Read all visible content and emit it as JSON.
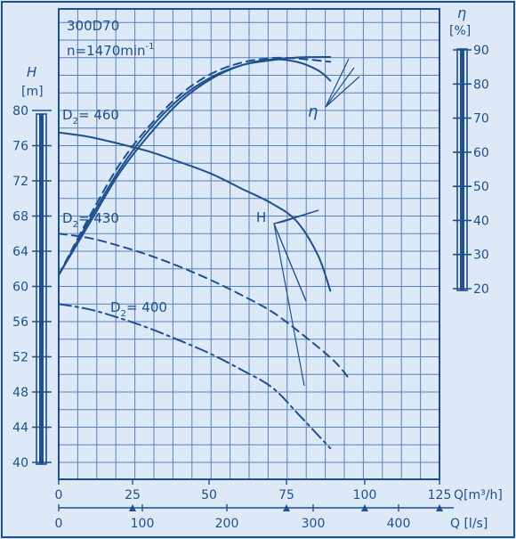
{
  "chart_data": {
    "type": "line",
    "title": "300D70",
    "subtitle_prefix": "n=1470min",
    "subtitle_sup": "-1",
    "left_axis": {
      "symbol": "H",
      "unit": "[m]",
      "ticks": [
        "40",
        "44",
        "48",
        "52",
        "56",
        "60",
        "64",
        "68",
        "72",
        "76",
        "80"
      ],
      "range": [
        40,
        80
      ]
    },
    "right_axis": {
      "symbol": "η",
      "unit": "[%]",
      "ticks": [
        "20",
        "30",
        "40",
        "50",
        "60",
        "70",
        "80",
        "90"
      ],
      "range": [
        20,
        90
      ]
    },
    "x_axis_top": {
      "ticks": [
        "0",
        "25",
        "50",
        "75",
        "100",
        "125"
      ],
      "unit_label": "Q[m³/h]",
      "range": [
        0,
        1000
      ]
    },
    "x_axis_bottom": {
      "ticks": [
        "0",
        "100",
        "200",
        "300",
        "400"
      ],
      "unit_label": "Q [l/s]",
      "range": [
        0,
        1000
      ]
    },
    "series": [
      {
        "name": "D2=460",
        "label_main": "D",
        "label_sub": "2",
        "label_rest": "= 460",
        "style": "solid",
        "kind": "H",
        "points": [
          [
            0,
            77.5
          ],
          [
            100,
            77
          ],
          [
            200,
            76.2
          ],
          [
            300,
            75.3
          ],
          [
            400,
            74.1
          ],
          [
            500,
            72.8
          ],
          [
            600,
            71.1
          ],
          [
            700,
            69.4
          ],
          [
            780,
            67.4
          ],
          [
            850,
            63.5
          ],
          [
            890,
            59.5
          ]
        ]
      },
      {
        "name": "D2=430",
        "label_main": "D",
        "label_sub": "2",
        "label_rest": "= 430",
        "style": "dashed",
        "kind": "H",
        "points": [
          [
            0,
            66
          ],
          [
            100,
            65.5
          ],
          [
            200,
            64.6
          ],
          [
            300,
            63.5
          ],
          [
            400,
            62.2
          ],
          [
            500,
            60.7
          ],
          [
            600,
            59
          ],
          [
            700,
            57.1
          ],
          [
            800,
            54.5
          ],
          [
            900,
            51.6
          ],
          [
            950,
            49.6
          ]
        ]
      },
      {
        "name": "D2=400",
        "label_main": "D",
        "label_sub": "2",
        "label_rest": "= 400",
        "style": "dashdot",
        "kind": "H",
        "points": [
          [
            0,
            58
          ],
          [
            100,
            57.4
          ],
          [
            200,
            56.4
          ],
          [
            300,
            55.2
          ],
          [
            400,
            53.8
          ],
          [
            500,
            52.3
          ],
          [
            600,
            50.5
          ],
          [
            700,
            48.5
          ],
          [
            790,
            45.3
          ],
          [
            890,
            41.6
          ]
        ]
      },
      {
        "name": "η D2=460",
        "style": "solid",
        "kind": "eta",
        "points": [
          [
            0,
            24
          ],
          [
            100,
            39
          ],
          [
            200,
            54
          ],
          [
            300,
            65.5
          ],
          [
            400,
            75
          ],
          [
            500,
            81.5
          ],
          [
            600,
            85.5
          ],
          [
            700,
            87.2
          ],
          [
            780,
            86.5
          ],
          [
            850,
            84
          ],
          [
            890,
            81
          ]
        ]
      },
      {
        "name": "η D2=430",
        "style": "dashed",
        "kind": "eta",
        "points": [
          [
            0,
            24
          ],
          [
            100,
            41
          ],
          [
            200,
            56.5
          ],
          [
            300,
            68
          ],
          [
            400,
            77
          ],
          [
            500,
            83
          ],
          [
            600,
            86.3
          ],
          [
            700,
            87.6
          ],
          [
            780,
            87.5
          ],
          [
            890,
            86.5
          ]
        ]
      },
      {
        "name": "η D2=400",
        "style": "solid",
        "kind": "eta",
        "points": [
          [
            0,
            24
          ],
          [
            100,
            40
          ],
          [
            200,
            55
          ],
          [
            300,
            67
          ],
          [
            400,
            76
          ],
          [
            500,
            82
          ],
          [
            600,
            85.5
          ],
          [
            700,
            87
          ],
          [
            790,
            87.8
          ],
          [
            890,
            87.9
          ]
        ]
      }
    ],
    "annotations": [
      {
        "text": "H"
      },
      {
        "text": "η"
      }
    ],
    "grid": true
  },
  "colors": {
    "background": "#dde9f6",
    "ink": "#1e4f8e",
    "grid": "#5a81b4"
  }
}
